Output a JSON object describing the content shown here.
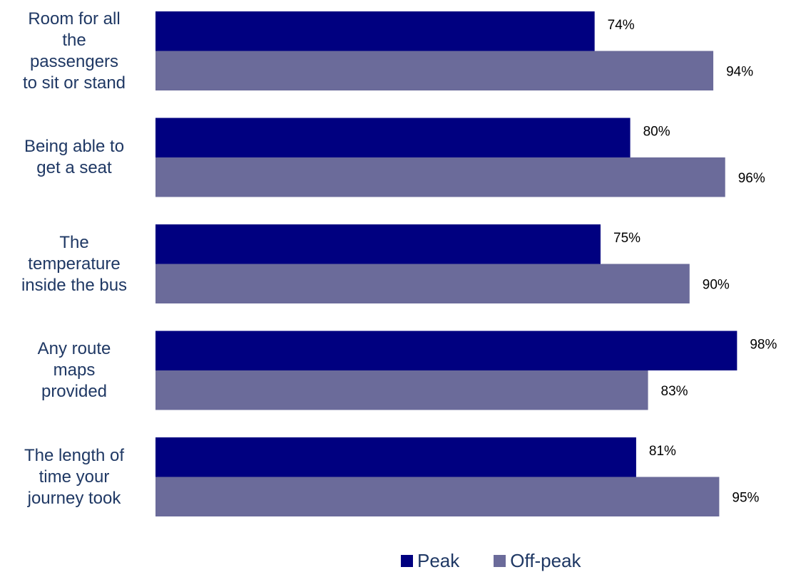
{
  "chart_data": {
    "type": "bar",
    "orientation": "horizontal",
    "categories": [
      "Room for all\nthe\npassengers\nto sit or stand",
      "Being able to\nget a seat",
      "The\ntemperature\ninside the bus",
      "Any route\nmaps\nprovided",
      "The length of\ntime your\njourney took"
    ],
    "series": [
      {
        "name": "Peak",
        "values": [
          74,
          80,
          75,
          98,
          81
        ],
        "labels": [
          "74%",
          "80%",
          "75%",
          "98%",
          "81%"
        ],
        "color": "#000080"
      },
      {
        "name": "Off-peak",
        "values": [
          94,
          96,
          90,
          83,
          95
        ],
        "labels": [
          "94%",
          "96%",
          "90%",
          "83%",
          "95%"
        ],
        "color": "#6b6b9a"
      }
    ],
    "xlim": [
      0,
      100
    ],
    "grid": false,
    "legend_position": "bottom"
  }
}
